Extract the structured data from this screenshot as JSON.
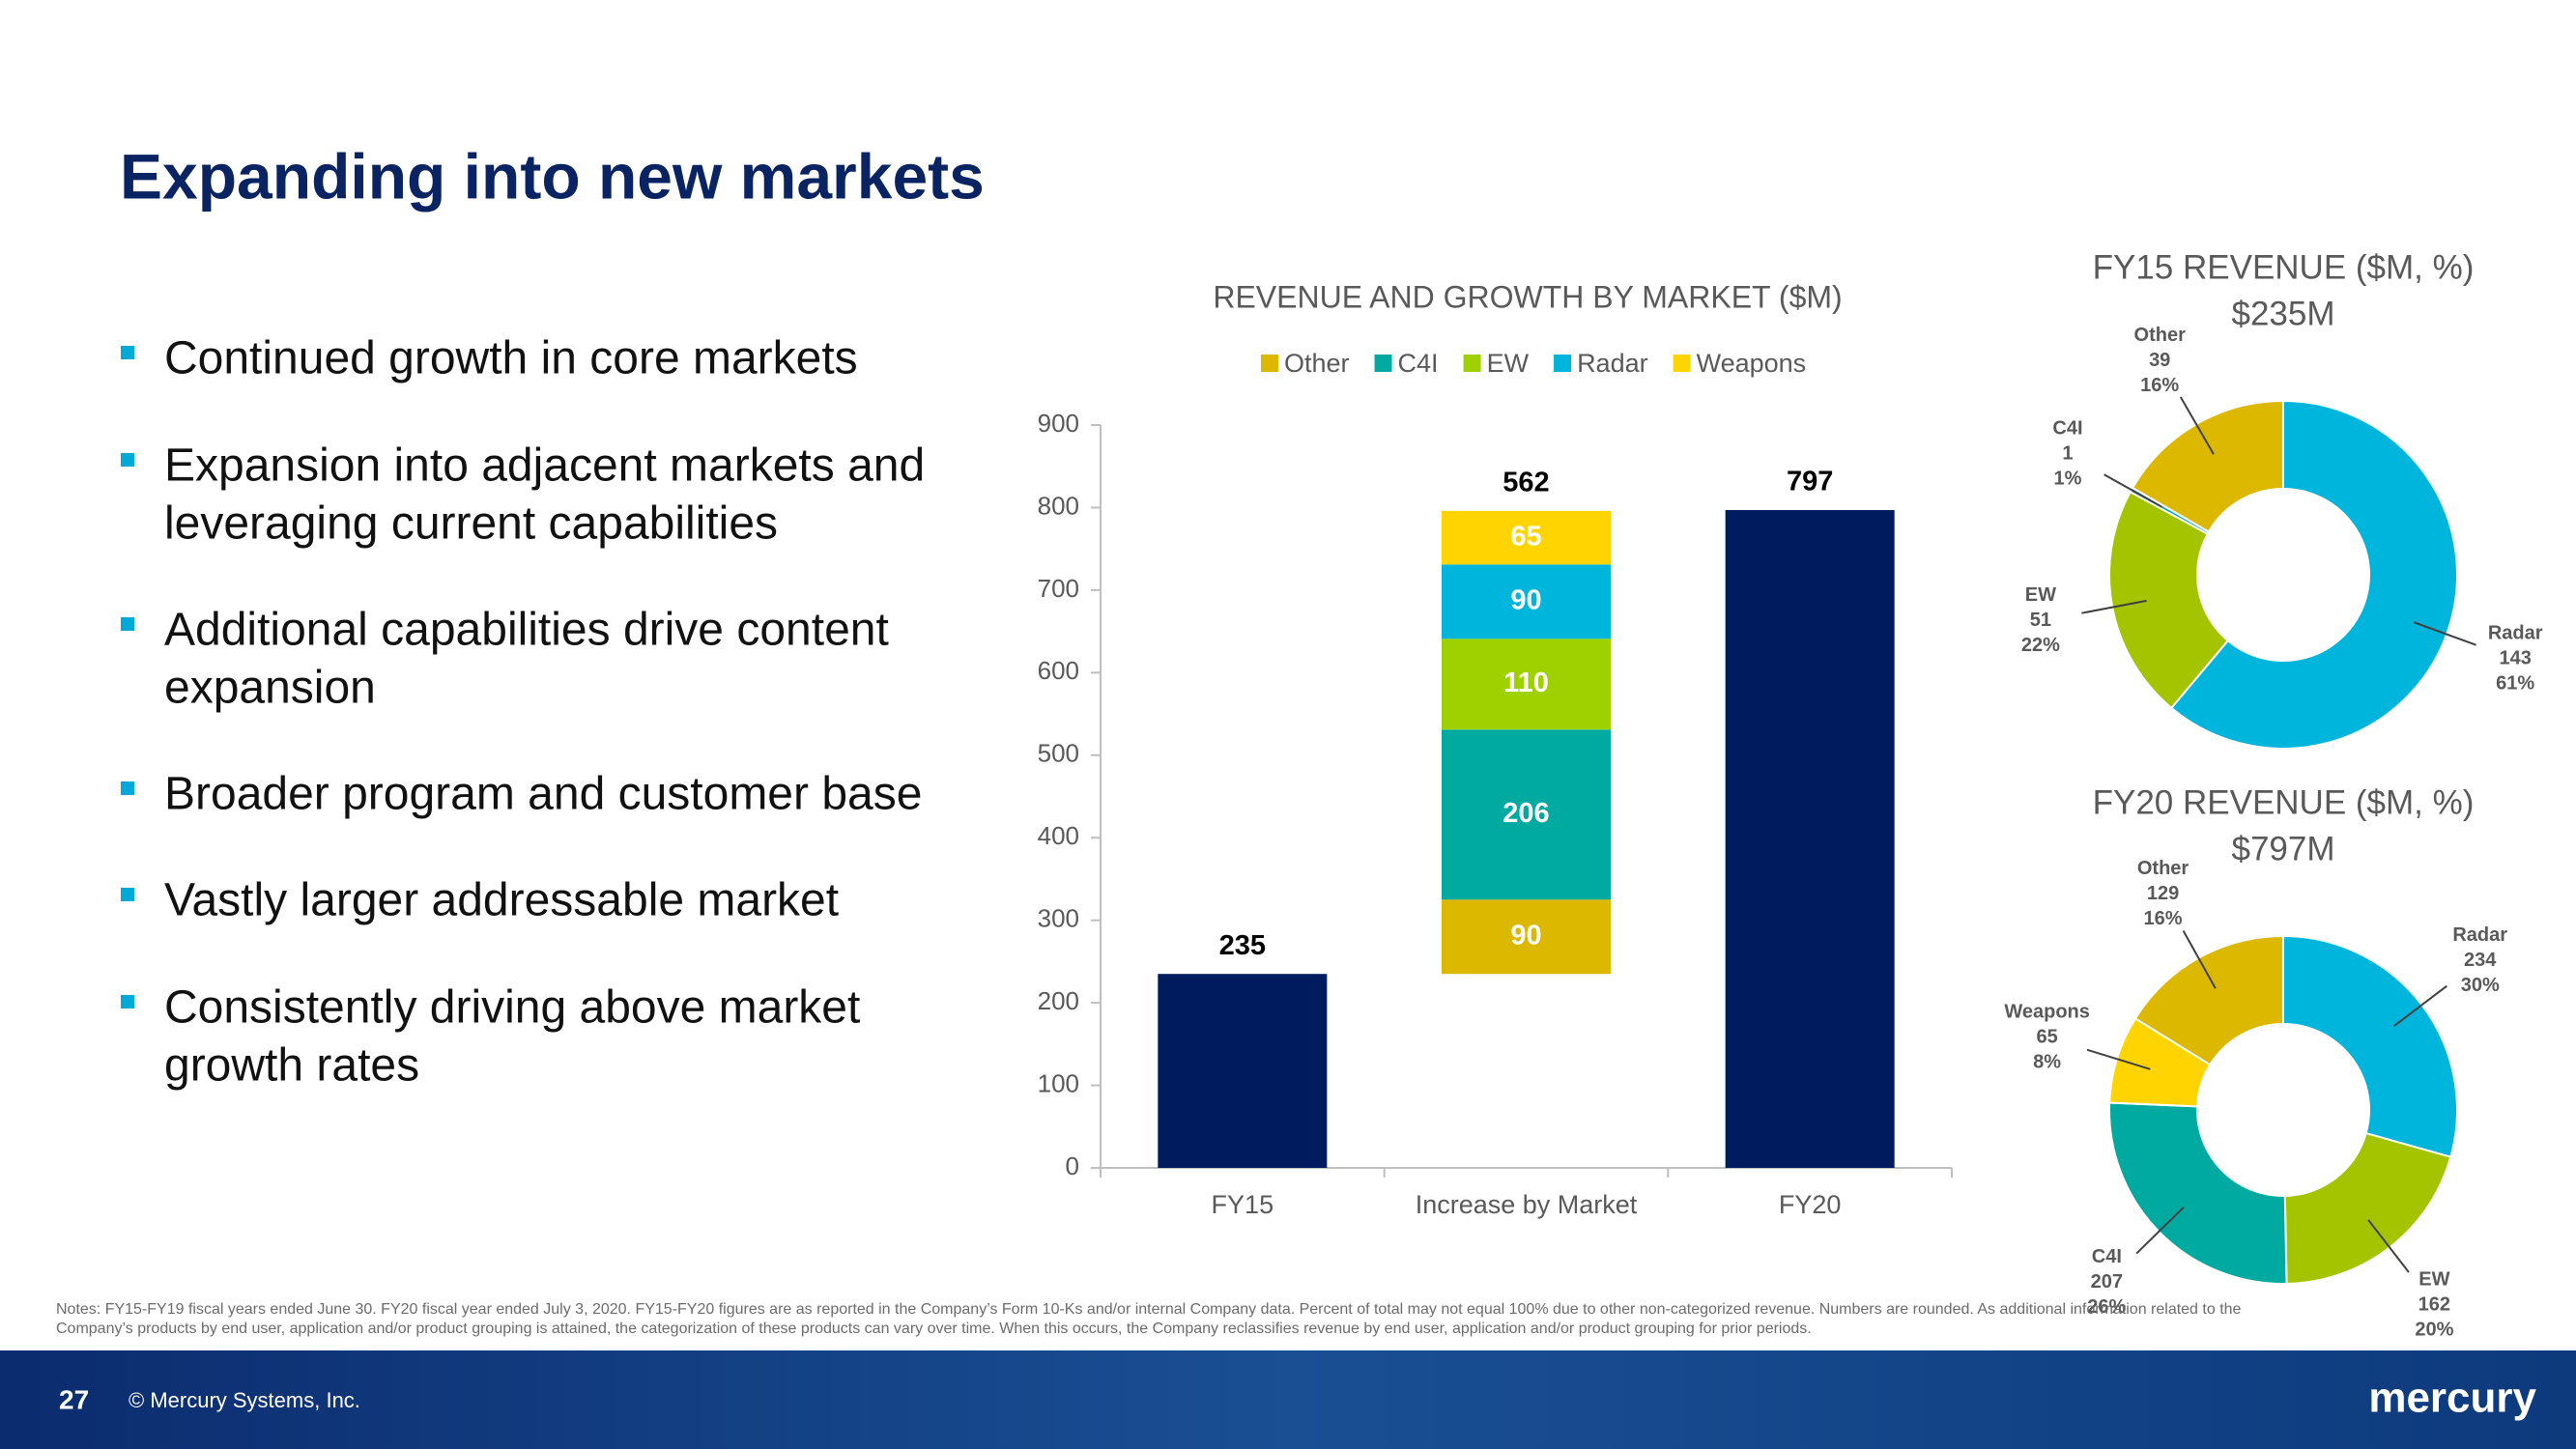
{
  "slide": {
    "title": "Expanding into new markets",
    "bullets": [
      [
        "Continued growth in core markets"
      ],
      [
        "Expansion into adjacent markets and",
        "leveraging current capabilities"
      ],
      [
        "Additional capabilities drive content",
        "expansion"
      ],
      [
        "Broader program and customer base"
      ],
      [
        "Vastly larger addressable market"
      ],
      [
        "Consistently driving above market",
        "growth rates"
      ]
    ],
    "notes": [
      "Notes: FY15-FY19 fiscal years ended June 30. FY20 fiscal year ended July 3, 2020. FY15-FY20 figures are as reported in the Company’s Form 10-Ks and/or internal Company data. Percent of total may not equal 100% due to other non-categorized revenue. Numbers are rounded. As additional information related to the",
      "Company’s products by end user, application and/or product grouping is attained, the categorization of these products can vary over time. When this occurs, the Company reclassifies revenue by end user, application and/or product grouping for prior periods."
    ],
    "page_number": 27,
    "copyright": "© Mercury Systems, Inc.",
    "logo": "mercury"
  },
  "chart_data": [
    {
      "type": "waterfall",
      "title": "REVENUE AND GROWTH BY MARKET ($M)",
      "categories": [
        "FY15",
        "Increase by Market",
        "FY20"
      ],
      "totals": [
        235,
        null,
        797
      ],
      "total_color": "#001c5e",
      "increase_total": 562,
      "series": [
        {
          "name": "Other",
          "color": "#dcb800",
          "values": [
            null,
            90,
            null
          ]
        },
        {
          "name": "C4I",
          "color": "#00aaa0",
          "values": [
            null,
            206,
            null
          ]
        },
        {
          "name": "EW",
          "color": "#9fd100",
          "values": [
            null,
            110,
            null
          ]
        },
        {
          "name": "Radar",
          "color": "#00b5dc",
          "values": [
            null,
            90,
            null
          ]
        },
        {
          "name": "Weapons",
          "color": "#ffd400",
          "values": [
            null,
            65,
            null
          ]
        }
      ],
      "ylim": [
        0,
        900
      ],
      "yticks": [
        0,
        100,
        200,
        300,
        400,
        500,
        600,
        700,
        800,
        900
      ],
      "grid": false,
      "legend": "top"
    },
    {
      "type": "donut",
      "title": "FY15 REVENUE ($M, %)",
      "subtitle": "$235M",
      "labels": [
        "Radar",
        "EW",
        "C4I",
        "Other"
      ],
      "values": [
        143,
        51,
        1,
        39
      ],
      "percent_labels": [
        "61%",
        "22%",
        "1%",
        "16%"
      ],
      "colors": [
        "#00b5dc",
        "#a4c400",
        "#00aaa0",
        "#dcb800"
      ]
    },
    {
      "type": "donut",
      "title": "FY20 REVENUE ($M, %)",
      "subtitle": "$797M",
      "labels": [
        "Radar",
        "EW",
        "C4I",
        "Weapons",
        "Other"
      ],
      "values": [
        234,
        162,
        207,
        65,
        129
      ],
      "percent_labels": [
        "30%",
        "20%",
        "26%",
        "8%",
        "16%"
      ],
      "colors": [
        "#00b5dc",
        "#a4c400",
        "#00aaa0",
        "#ffd400",
        "#dcb800"
      ]
    }
  ]
}
